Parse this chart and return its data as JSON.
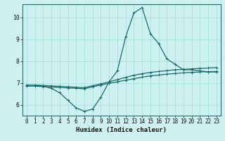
{
  "xlabel": "Humidex (Indice chaleur)",
  "background_color": "#cdf0f0",
  "grid_color": "#aadddd",
  "line_color": "#1a6b6b",
  "xlim": [
    -0.5,
    23.5
  ],
  "ylim": [
    5.5,
    10.6
  ],
  "yticks": [
    6,
    7,
    8,
    9,
    10
  ],
  "xticks": [
    0,
    1,
    2,
    3,
    4,
    5,
    6,
    7,
    8,
    9,
    10,
    11,
    12,
    13,
    14,
    15,
    16,
    17,
    18,
    19,
    20,
    21,
    22,
    23
  ],
  "series1_x": [
    0,
    1,
    2,
    3,
    4,
    5,
    6,
    7,
    8,
    9,
    10,
    11,
    12,
    13,
    14,
    15,
    16,
    17,
    18,
    19,
    20,
    21,
    22,
    23
  ],
  "series1_y": [
    6.9,
    6.9,
    6.85,
    6.75,
    6.55,
    6.2,
    5.85,
    5.7,
    5.8,
    6.35,
    7.05,
    7.55,
    9.1,
    10.2,
    10.45,
    9.25,
    8.8,
    8.1,
    7.85,
    7.6,
    7.6,
    7.55,
    7.5,
    7.5
  ],
  "series2_x": [
    0,
    1,
    2,
    3,
    4,
    5,
    6,
    7,
    8,
    9,
    10,
    11,
    12,
    13,
    14,
    15,
    16,
    17,
    18,
    19,
    20,
    21,
    22,
    23
  ],
  "series2_y": [
    6.9,
    6.9,
    6.88,
    6.86,
    6.84,
    6.82,
    6.8,
    6.78,
    6.87,
    6.95,
    7.05,
    7.15,
    7.25,
    7.35,
    7.42,
    7.48,
    7.52,
    7.56,
    7.6,
    7.62,
    7.64,
    7.66,
    7.68,
    7.7
  ],
  "series3_x": [
    0,
    1,
    2,
    3,
    4,
    5,
    6,
    7,
    8,
    9,
    10,
    11,
    12,
    13,
    14,
    15,
    16,
    17,
    18,
    19,
    20,
    21,
    22,
    23
  ],
  "series3_y": [
    6.85,
    6.85,
    6.83,
    6.81,
    6.79,
    6.77,
    6.75,
    6.73,
    6.82,
    6.9,
    6.98,
    7.05,
    7.12,
    7.19,
    7.26,
    7.32,
    7.36,
    7.4,
    7.43,
    7.46,
    7.48,
    7.5,
    7.51,
    7.52
  ],
  "tick_fontsize": 5.5,
  "xlabel_fontsize": 6.5,
  "line_width": 0.9,
  "marker_size": 3.0
}
